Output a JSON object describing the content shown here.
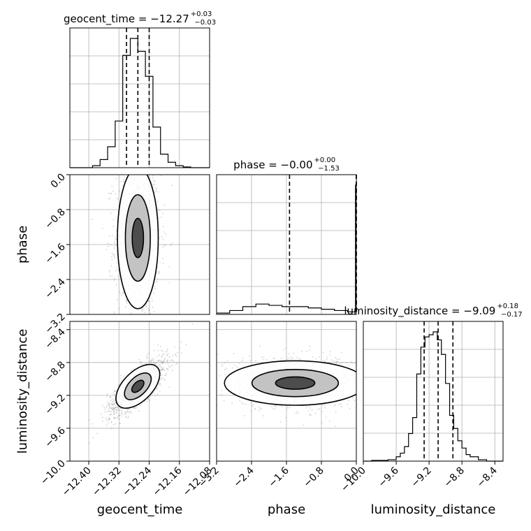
{
  "chart_data": {
    "type": "corner",
    "parameters": [
      "geocent_time",
      "phase",
      "luminosity_distance"
    ],
    "titles": [
      {
        "param": "geocent_time",
        "prefix": "geocent_time = ",
        "median": "−12.27",
        "plus": "+0.03",
        "minus": "−0.03"
      },
      {
        "param": "phase",
        "prefix": "phase = ",
        "median": "−0.00",
        "plus": "+0.00",
        "minus": "−1.53"
      },
      {
        "param": "luminosity_distance",
        "prefix": "luminosity_distance = ",
        "median": "−9.09",
        "plus": "+0.18",
        "minus": "−0.17"
      }
    ],
    "axes": {
      "geocent_time": {
        "range": [
          -12.45,
          -12.08
        ],
        "ticks": [
          -12.4,
          -12.32,
          -12.24,
          -12.16,
          -12.08
        ],
        "tick_labels": [
          "−12.40",
          "−12.32",
          "−12.24",
          "−12.16",
          "−12.08"
        ],
        "quantiles": [
          -12.3,
          -12.27,
          -12.24
        ]
      },
      "phase": {
        "range": [
          -3.2,
          0.0
        ],
        "ticks": [
          -3.2,
          -2.4,
          -1.6,
          -0.8,
          0.0
        ],
        "tick_labels": [
          "−3.2",
          "−2.4",
          "−1.6",
          "−0.8",
          "0.0"
        ],
        "quantiles": [
          -1.53,
          0.0,
          0.0
        ]
      },
      "luminosity_distance": {
        "range": [
          -10.0,
          -8.3
        ],
        "ticks": [
          -10.0,
          -9.6,
          -9.2,
          -8.8,
          -8.4
        ],
        "tick_labels": [
          "−10.0",
          "−9.6",
          "−9.2",
          "−8.8",
          "−8.4"
        ],
        "quantiles": [
          -9.26,
          -9.09,
          -8.91
        ]
      }
    },
    "histograms": {
      "geocent_time": {
        "bin_edges": [
          -12.45,
          -12.43,
          -12.41,
          -12.39,
          -12.37,
          -12.35,
          -12.33,
          -12.31,
          -12.29,
          -12.27,
          -12.25,
          -12.23,
          -12.21,
          -12.19,
          -12.17,
          -12.15,
          -12.13,
          -12.11,
          -12.09,
          -12.08
        ],
        "counts": [
          0,
          0,
          0,
          3,
          12,
          31,
          69,
          166,
          191,
          172,
          135,
          60,
          20,
          8,
          3,
          1,
          0,
          0,
          0
        ]
      },
      "phase": {
        "bin_edges": [
          -3.2,
          -2.9,
          -2.6,
          -2.3,
          -2.0,
          -1.7,
          -1.4,
          -1.1,
          -0.8,
          -0.5,
          -0.2,
          -0.02,
          0.0
        ],
        "counts": [
          1,
          3,
          6,
          8,
          7,
          6,
          6,
          5,
          4,
          3,
          2,
          100
        ]
      },
      "luminosity_distance": {
        "bin_edges": [
          -10.0,
          -9.9,
          -9.8,
          -9.7,
          -9.6,
          -9.55,
          -9.5,
          -9.45,
          -9.4,
          -9.35,
          -9.3,
          -9.25,
          -9.2,
          -9.15,
          -9.1,
          -9.05,
          -9.0,
          -8.95,
          -8.9,
          -8.85,
          -8.8,
          -8.75,
          -8.7,
          -8.6,
          -8.5,
          -8.4,
          -8.3
        ],
        "counts": [
          0,
          1,
          1,
          2,
          6,
          11,
          20,
          38,
          60,
          120,
          157,
          171,
          174,
          178,
          167,
          147,
          107,
          63,
          45,
          28,
          18,
          9,
          6,
          2,
          0,
          0
        ]
      }
    },
    "pairs": [
      {
        "x": "geocent_time",
        "y": "phase",
        "scatter_center": [
          -12.27,
          -1.45
        ],
        "scatter_spread": [
          0.03,
          0.9
        ]
      },
      {
        "x": "geocent_time",
        "y": "luminosity_distance",
        "scatter_center": [
          -12.27,
          -9.09
        ],
        "scatter_spread": [
          0.04,
          0.18
        ],
        "correlation": 0.8
      },
      {
        "x": "phase",
        "y": "luminosity_distance",
        "scatter_center": [
          -1.4,
          -9.05
        ],
        "scatter_spread": [
          0.9,
          0.15
        ]
      }
    ],
    "grid": true,
    "colors": {
      "line": "#000000",
      "grid": "#b0b0b0",
      "scatter": "#808080",
      "background": "#ffffff"
    }
  }
}
